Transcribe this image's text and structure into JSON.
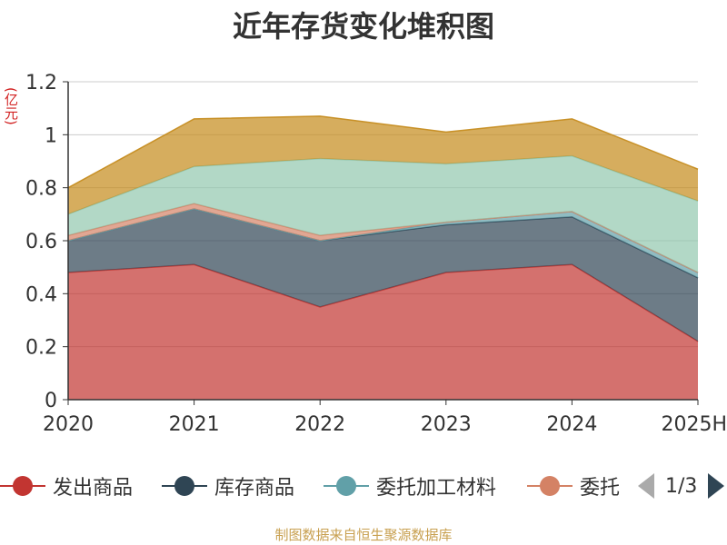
{
  "title": "近年存货变化堆积图",
  "unit_label": "(亿元)",
  "source": "制图数据来自恒生聚源数据库",
  "legend": {
    "items": [
      {
        "label": "发出商品",
        "color": "#c23531"
      },
      {
        "label": "库存商品",
        "color": "#2f4554"
      },
      {
        "label": "委托加工材料",
        "color": "#61a0a8"
      },
      {
        "label": "委托",
        "color": "#d48265"
      }
    ],
    "page": "1/3"
  },
  "chart_data": {
    "type": "area",
    "stacked": true,
    "title": "近年存货变化堆积图",
    "ylabel": "(亿元)",
    "categories": [
      "2020",
      "2021",
      "2022",
      "2023",
      "2024",
      "2025H"
    ],
    "ylim": [
      0,
      1.2
    ],
    "yticks": [
      "0",
      "0.2",
      "0.4",
      "0.6",
      "0.8",
      "1",
      "1.2"
    ],
    "series": [
      {
        "name": "发出商品",
        "color": "#c23531",
        "values": [
          0.48,
          0.51,
          0.35,
          0.48,
          0.51,
          0.22
        ]
      },
      {
        "name": "库存商品",
        "color": "#2f4554",
        "values": [
          0.12,
          0.21,
          0.25,
          0.18,
          0.18,
          0.24
        ]
      },
      {
        "name": "委托加工材料",
        "color": "#61a0a8",
        "values": [
          0.0,
          0.0,
          0.0,
          0.01,
          0.02,
          0.02
        ]
      },
      {
        "name": "委托",
        "color": "#d48265",
        "values": [
          0.02,
          0.02,
          0.02,
          0.0,
          0.0,
          0.0
        ]
      },
      {
        "color": "#91c7ae",
        "values": [
          0.08,
          0.14,
          0.29,
          0.22,
          0.21,
          0.27
        ]
      },
      {
        "color": "#c48a1a",
        "values": [
          0.1,
          0.18,
          0.16,
          0.12,
          0.14,
          0.12
        ]
      }
    ]
  }
}
